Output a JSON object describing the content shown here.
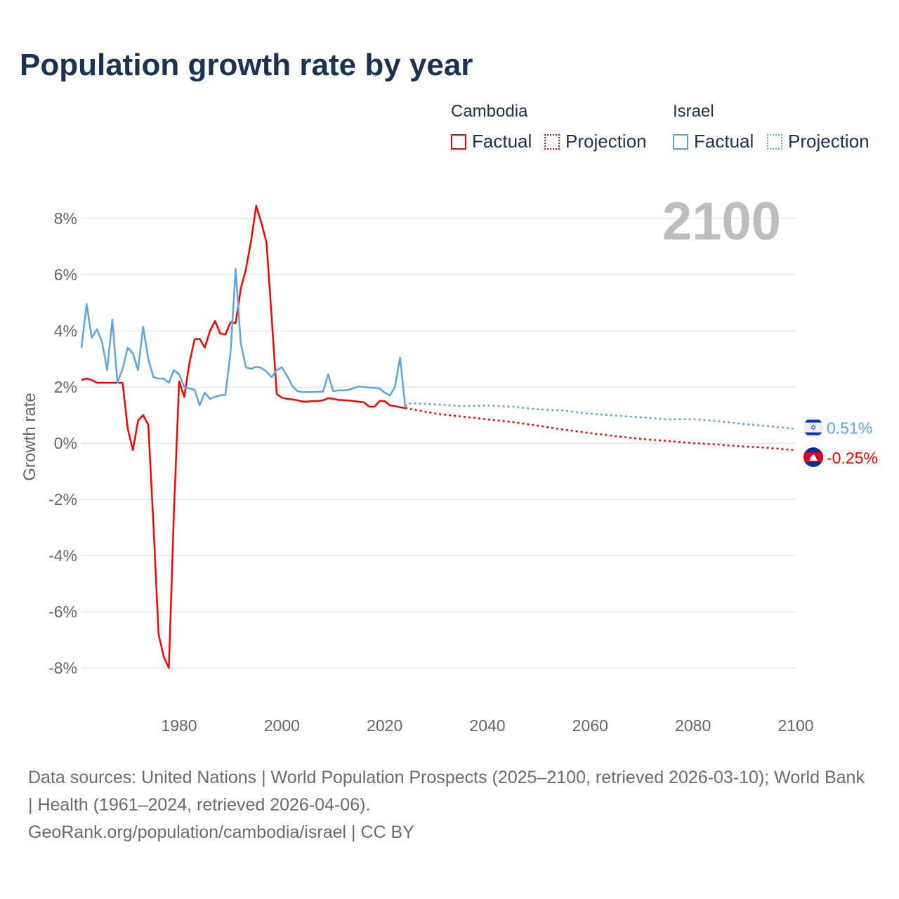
{
  "title": "Population growth rate by year",
  "legend": {
    "groups": [
      {
        "country": "Cambodia",
        "factual": "Factual",
        "projection": "Projection",
        "color": "#ff0000"
      },
      {
        "country": "Israel",
        "factual": "Factual",
        "projection": "Projection",
        "color": "#5ba4e5"
      }
    ]
  },
  "current_year": "2100",
  "footer": {
    "sources": "Data sources: United Nations | World Population Prospects (2025–2100, retrieved 2026-03-10); World Bank | Health (1961–2024, retrieved 2026-04-06).",
    "credit": "GeoRank.org/population/cambodia/israel | CC BY"
  },
  "chart_data": {
    "type": "line",
    "title": "Population growth rate by year",
    "xlabel": "",
    "ylabel": "Growth rate",
    "xlim": [
      1961,
      2100
    ],
    "ylim": [
      -8,
      8
    ],
    "x_ticks": [
      "1980",
      "2000",
      "2020",
      "2040",
      "2060",
      "2080",
      "2100"
    ],
    "x_tick_values": [
      1980,
      2000,
      2020,
      2040,
      2060,
      2080,
      2100
    ],
    "y_ticks": [
      "8%",
      "6%",
      "4%",
      "2%",
      "0%",
      "-2%",
      "-4%",
      "-6%",
      "-8%"
    ],
    "y_tick_values": [
      8,
      6,
      4,
      2,
      0,
      -2,
      -4,
      -6,
      -8
    ],
    "grid": true,
    "legend_position": "top-right",
    "series": [
      {
        "name": "Cambodia",
        "color": "#ff0000",
        "end_label": "-0.25%",
        "factual_start": 1961,
        "factual": [
          2.25,
          2.3,
          2.25,
          2.15,
          2.15,
          2.15,
          2.15,
          2.15,
          2.15,
          0.52,
          -0.25,
          0.8,
          1.0,
          0.65,
          -2.9,
          -6.8,
          -7.6,
          -8.0,
          -2.4,
          2.2,
          1.65,
          2.85,
          3.7,
          3.72,
          3.4,
          4.0,
          4.35,
          3.9,
          3.87,
          4.3,
          4.28,
          5.5,
          6.2,
          7.2,
          8.45,
          7.85,
          7.15,
          4.5,
          1.75,
          1.62,
          1.58,
          1.56,
          1.53,
          1.48,
          1.48,
          1.5,
          1.5,
          1.53,
          1.6,
          1.58,
          1.54,
          1.53,
          1.52,
          1.5,
          1.48,
          1.45,
          1.3,
          1.3,
          1.5,
          1.5,
          1.35,
          1.32,
          1.28,
          1.25
        ],
        "projection_x": [
          2024,
          2030,
          2035,
          2040,
          2045,
          2050,
          2055,
          2060,
          2065,
          2070,
          2075,
          2080,
          2085,
          2090,
          2095,
          2100
        ],
        "projection": [
          1.25,
          1.05,
          0.95,
          0.85,
          0.75,
          0.62,
          0.48,
          0.36,
          0.25,
          0.15,
          0.08,
          0.0,
          -0.05,
          -0.12,
          -0.17,
          -0.25
        ]
      },
      {
        "name": "Israel",
        "color": "#5ba4e5",
        "end_label": "0.51%",
        "factual_start": 1961,
        "factual": [
          3.4,
          4.95,
          3.75,
          4.05,
          3.6,
          2.6,
          4.4,
          2.15,
          2.65,
          3.4,
          3.2,
          2.6,
          4.15,
          3.0,
          2.35,
          2.3,
          2.3,
          2.15,
          2.6,
          2.45,
          2.0,
          1.95,
          1.9,
          1.35,
          1.8,
          1.58,
          1.65,
          1.7,
          1.72,
          3.2,
          6.2,
          3.55,
          2.7,
          2.65,
          2.72,
          2.68,
          2.55,
          2.35,
          2.6,
          2.7,
          2.4,
          2.05,
          1.85,
          1.82,
          1.82,
          1.82,
          1.83,
          1.83,
          2.45,
          1.85,
          1.88,
          1.88,
          1.9,
          1.96,
          2.02,
          2.0,
          1.98,
          1.97,
          1.95,
          1.8,
          1.7,
          2.0,
          3.05,
          1.3
        ],
        "projection_x": [
          2024,
          2025,
          2030,
          2035,
          2040,
          2045,
          2050,
          2055,
          2060,
          2065,
          2070,
          2075,
          2080,
          2085,
          2090,
          2095,
          2100
        ],
        "projection": [
          1.3,
          1.42,
          1.38,
          1.32,
          1.34,
          1.3,
          1.2,
          1.16,
          1.05,
          0.98,
          0.92,
          0.85,
          0.86,
          0.78,
          0.68,
          0.6,
          0.51
        ]
      }
    ]
  }
}
